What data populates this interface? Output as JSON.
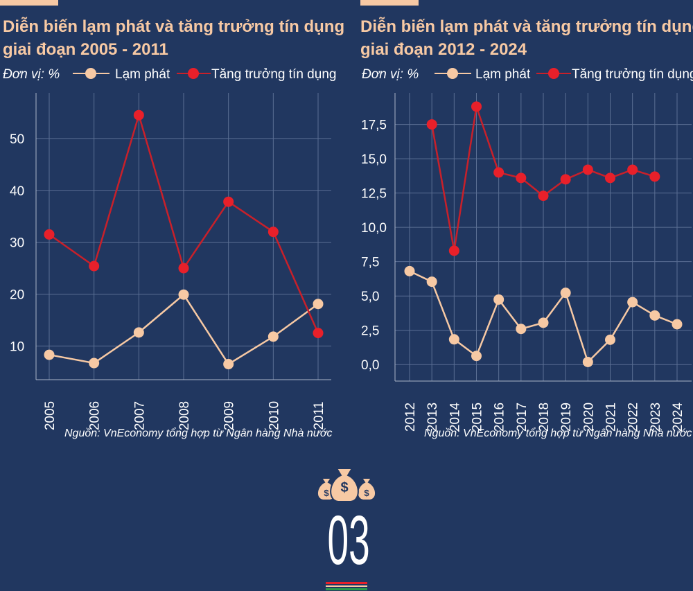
{
  "charts": [
    {
      "title_line1": "Diễn biến lạm phát và tăng trưởng tín dụng",
      "title_line2": "giai đoạn 2005 - 2011",
      "unit_label": "Đơn vị: %",
      "source": "Nguồn: VnEconomy tổng hợp từ Ngân hàng Nhà nước"
    },
    {
      "title_line1": "Diễn biến lạm phát và tăng trưởng tín dụng",
      "title_line2": "giai đoạn 2012 - 2024",
      "unit_label": "Đơn vị: %",
      "source": "Nguồn: VnEconomy tổng hợp từ Ngân hàng Nhà nước"
    }
  ],
  "section_number": "03",
  "icon": "money-bags-icon",
  "colors": {
    "background": "#213760",
    "accent": "#f7c9a4",
    "inflation": "#f7c9a4",
    "credit": "#e8202a",
    "credit_line": "#c8202a"
  },
  "chart_data": [
    {
      "type": "line",
      "categories": [
        "2005",
        "2006",
        "2007",
        "2008",
        "2009",
        "2010",
        "2011"
      ],
      "series": [
        {
          "name": "Lạm phát",
          "values": [
            8.3,
            6.7,
            12.6,
            19.9,
            6.5,
            11.8,
            18.1
          ]
        },
        {
          "name": "Tăng trưởng tín dụng",
          "values": [
            31.5,
            25.4,
            54.5,
            25.0,
            37.8,
            32.0,
            12.5
          ]
        }
      ],
      "yticks": [
        10,
        20,
        30,
        40,
        50
      ],
      "ylim": [
        3.5,
        58
      ],
      "grid": true,
      "legend": "top"
    },
    {
      "type": "line",
      "categories": [
        "2012",
        "2013",
        "2014",
        "2015",
        "2016",
        "2017",
        "2018",
        "2019",
        "2020",
        "2021",
        "2022",
        "2023",
        "2024"
      ],
      "series": [
        {
          "name": "Lạm phát",
          "values": [
            6.81,
            6.04,
            1.84,
            0.63,
            4.74,
            2.6,
            3.05,
            5.23,
            0.19,
            1.81,
            4.55,
            3.58,
            2.94
          ]
        },
        {
          "name": "Tăng trưởng tín dụng",
          "values": [
            null,
            17.5,
            8.3,
            18.8,
            14.0,
            13.6,
            12.3,
            13.5,
            14.2,
            13.6,
            14.2,
            13.7,
            null
          ]
        }
      ],
      "yticks": [
        "0,0",
        "2,5",
        "5,0",
        "7,5",
        "10,0",
        "12,5",
        "15,0",
        "17,5"
      ],
      "ylim": [
        -1.2,
        19.5
      ],
      "grid": true,
      "legend": "top"
    }
  ]
}
